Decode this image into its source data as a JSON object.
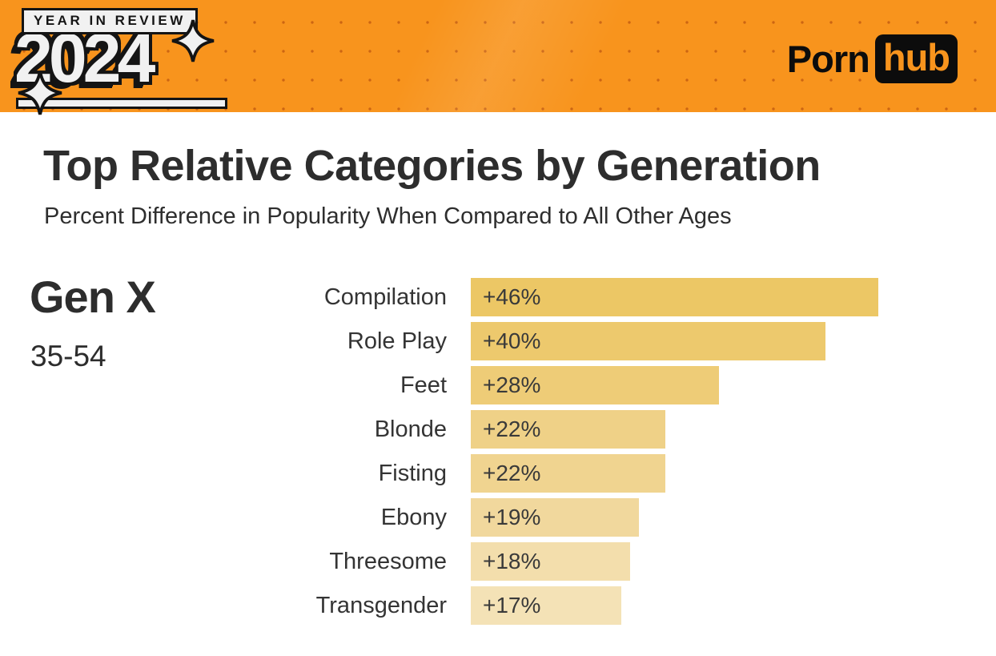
{
  "colors": {
    "orange": "#F8941D",
    "dot": "#A73E09",
    "ink": "#141414",
    "text_dark": "#2D2D2D",
    "bar_value_text": "#3A3A3A"
  },
  "header": {
    "logo": {
      "badge_text": "YEAR IN REVIEW",
      "year": "2024",
      "sparkle_icons": [
        "four-point-star",
        "four-point-star"
      ]
    },
    "brand": {
      "word1": "Porn",
      "word2": "hub"
    }
  },
  "main": {
    "title": "Top Relative Categories by Generation",
    "subtitle": "Percent Difference in Popularity When Compared to All Other Ages",
    "generation": {
      "name": "Gen X",
      "age_range": "35-54"
    }
  },
  "chart_data": {
    "type": "bar",
    "orientation": "horizontal",
    "title": "Top Relative Categories by Generation",
    "subtitle": "Percent Difference in Popularity When Compared to All Other Ages",
    "group_label": "Gen X (35-54)",
    "categories": [
      "Compilation",
      "Role Play",
      "Feet",
      "Blonde",
      "Fisting",
      "Ebony",
      "Threesome",
      "Transgender"
    ],
    "values": [
      46,
      40,
      28,
      22,
      22,
      19,
      18,
      17
    ],
    "value_labels": [
      "+46%",
      "+40%",
      "+28%",
      "+22%",
      "+22%",
      "+19%",
      "+18%",
      "+17%"
    ],
    "unit": "percent",
    "xlim": [
      0,
      46
    ],
    "grid": false,
    "legend": false,
    "bar_colors": [
      "#ECC765",
      "#EDC96D",
      "#EECC77",
      "#EFD187",
      "#F0D490",
      "#F1D89D",
      "#F3DEAC",
      "#F4E2B6"
    ]
  }
}
